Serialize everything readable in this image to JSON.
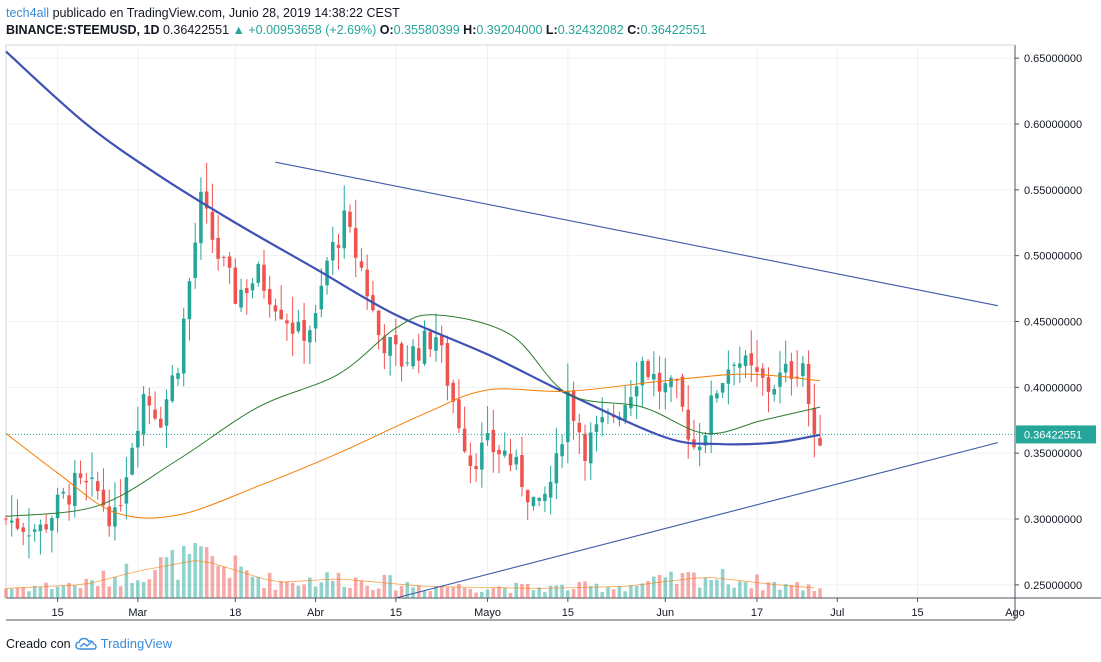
{
  "header": {
    "user": "tech4all",
    "published": "publicado en TradingView.com, Junio 28, 2019 14:38:22 CEST",
    "symbol": "BINANCE:STEEMUSD, 1D",
    "last": "0.36422551",
    "change_arrow": "▲",
    "change": "+0.00953658 (+2.69%)",
    "o_label": "O:",
    "o": "0.35580399",
    "h_label": "H:",
    "h": "0.39204000",
    "l_label": "L:",
    "l": "0.32432082",
    "c_label": "C:",
    "c": "0.36422551"
  },
  "footer": {
    "created": "Creado con",
    "logo_text": "TradingView",
    "logo_icon": "tradingview-cloud-icon"
  },
  "colors": {
    "up": "#26a69a",
    "down": "#ef5350",
    "ma_blue": "#3f51b5",
    "ma_green": "#2e7d32",
    "ma_orange": "#f57c00",
    "trend": "#3d5aa8"
  },
  "chart_data": {
    "type": "candlestick",
    "y_axis": {
      "range": [
        0.24,
        0.66
      ],
      "ticks": [
        "0.65000000",
        "0.60000000",
        "0.55000000",
        "0.50000000",
        "0.45000000",
        "0.40000000",
        "0.35000000",
        "0.30000000",
        "0.25000000"
      ],
      "current_label": "0.36422551"
    },
    "x_axis": {
      "range": [
        "2019-02-06",
        "2019-08-01"
      ],
      "ticks": [
        {
          "date": "2019-02-15",
          "label": "15"
        },
        {
          "date": "2019-03-01",
          "label": "Mar"
        },
        {
          "date": "2019-03-18",
          "label": "18"
        },
        {
          "date": "2019-04-01",
          "label": "Abr"
        },
        {
          "date": "2019-04-15",
          "label": "15"
        },
        {
          "date": "2019-05-01",
          "label": "Mayo"
        },
        {
          "date": "2019-05-15",
          "label": "15"
        },
        {
          "date": "2019-06-01",
          "label": "Jun"
        },
        {
          "date": "2019-06-17",
          "label": "17"
        },
        {
          "date": "2019-07-01",
          "label": "Jul"
        },
        {
          "date": "2019-07-15",
          "label": "15"
        },
        {
          "date": "2019-08-01",
          "label": "Ago"
        }
      ]
    },
    "grid": true,
    "anchors": [
      [
        "2019-02-06",
        0.3
      ],
      [
        "2019-02-12",
        0.292
      ],
      [
        "2019-02-15",
        0.31
      ],
      [
        "2019-02-18",
        0.325
      ],
      [
        "2019-02-22",
        0.32
      ],
      [
        "2019-02-25",
        0.298
      ],
      [
        "2019-02-28",
        0.36
      ],
      [
        "2019-03-02",
        0.395
      ],
      [
        "2019-03-05",
        0.378
      ],
      [
        "2019-03-08",
        0.42
      ],
      [
        "2019-03-12",
        0.54
      ],
      [
        "2019-03-15",
        0.5
      ],
      [
        "2019-03-18",
        0.47
      ],
      [
        "2019-03-22",
        0.485
      ],
      [
        "2019-03-26",
        0.46
      ],
      [
        "2019-03-29",
        0.44
      ],
      [
        "2019-04-01",
        0.45
      ],
      [
        "2019-04-03",
        0.495
      ],
      [
        "2019-04-06",
        0.525
      ],
      [
        "2019-04-09",
        0.49
      ],
      [
        "2019-04-12",
        0.44
      ],
      [
        "2019-04-16",
        0.42
      ],
      [
        "2019-04-19",
        0.43
      ],
      [
        "2019-04-22",
        0.44
      ],
      [
        "2019-04-25",
        0.39
      ],
      [
        "2019-04-28",
        0.345
      ],
      [
        "2019-05-01",
        0.355
      ],
      [
        "2019-05-04",
        0.35
      ],
      [
        "2019-05-07",
        0.33
      ],
      [
        "2019-05-10",
        0.305
      ],
      [
        "2019-05-13",
        0.34
      ],
      [
        "2019-05-15",
        0.395
      ],
      [
        "2019-05-18",
        0.355
      ],
      [
        "2019-05-21",
        0.37
      ],
      [
        "2019-05-25",
        0.39
      ],
      [
        "2019-05-28",
        0.42
      ],
      [
        "2019-05-31",
        0.4
      ],
      [
        "2019-06-03",
        0.395
      ],
      [
        "2019-06-06",
        0.355
      ],
      [
        "2019-06-08",
        0.37
      ],
      [
        "2019-06-10",
        0.4
      ],
      [
        "2019-06-13",
        0.425
      ],
      [
        "2019-06-16",
        0.41
      ],
      [
        "2019-06-19",
        0.4
      ],
      [
        "2019-06-22",
        0.41
      ],
      [
        "2019-06-25",
        0.42
      ],
      [
        "2019-06-27",
        0.355
      ],
      [
        "2019-06-28",
        0.364
      ]
    ],
    "volume_anchors": [
      [
        "2019-02-06",
        0.25
      ],
      [
        "2019-02-20",
        0.35
      ],
      [
        "2019-03-01",
        0.7
      ],
      [
        "2019-03-12",
        1.0
      ],
      [
        "2019-03-25",
        0.4
      ],
      [
        "2019-04-05",
        0.5
      ],
      [
        "2019-04-20",
        0.3
      ],
      [
        "2019-05-10",
        0.25
      ],
      [
        "2019-05-25",
        0.3
      ],
      [
        "2019-06-08",
        0.55
      ],
      [
        "2019-06-20",
        0.35
      ],
      [
        "2019-06-28",
        0.25
      ]
    ],
    "moving_averages": [
      {
        "color": "blue",
        "period": 200,
        "points": [
          [
            "2019-02-06",
            0.655
          ],
          [
            "2019-02-20",
            0.6
          ],
          [
            "2019-03-05",
            0.56
          ],
          [
            "2019-03-18",
            0.525
          ],
          [
            "2019-04-01",
            0.49
          ],
          [
            "2019-04-15",
            0.455
          ],
          [
            "2019-05-01",
            0.425
          ],
          [
            "2019-05-15",
            0.395
          ],
          [
            "2019-06-01",
            0.362
          ],
          [
            "2019-06-10",
            0.357
          ],
          [
            "2019-06-20",
            0.358
          ],
          [
            "2019-06-28",
            0.364
          ]
        ]
      },
      {
        "color": "green",
        "period": 50,
        "points": [
          [
            "2019-02-06",
            0.302
          ],
          [
            "2019-02-22",
            0.31
          ],
          [
            "2019-03-08",
            0.345
          ],
          [
            "2019-03-22",
            0.385
          ],
          [
            "2019-04-05",
            0.41
          ],
          [
            "2019-04-15",
            0.445
          ],
          [
            "2019-04-22",
            0.455
          ],
          [
            "2019-05-05",
            0.44
          ],
          [
            "2019-05-15",
            0.395
          ],
          [
            "2019-05-28",
            0.385
          ],
          [
            "2019-06-08",
            0.365
          ],
          [
            "2019-06-18",
            0.375
          ],
          [
            "2019-06-28",
            0.385
          ]
        ]
      },
      {
        "color": "orange",
        "period": 100,
        "points": [
          [
            "2019-02-06",
            0.365
          ],
          [
            "2019-02-15",
            0.335
          ],
          [
            "2019-02-25",
            0.305
          ],
          [
            "2019-03-08",
            0.303
          ],
          [
            "2019-03-22",
            0.325
          ],
          [
            "2019-04-05",
            0.35
          ],
          [
            "2019-04-20",
            0.38
          ],
          [
            "2019-05-01",
            0.398
          ],
          [
            "2019-05-15",
            0.397
          ],
          [
            "2019-06-01",
            0.405
          ],
          [
            "2019-06-15",
            0.41
          ],
          [
            "2019-06-28",
            0.405
          ]
        ]
      }
    ],
    "trendlines": [
      {
        "points": [
          [
            "2019-03-25",
            0.571
          ],
          [
            "2019-07-29",
            0.462
          ]
        ]
      },
      {
        "points": [
          [
            "2019-04-15",
            0.24
          ],
          [
            "2019-07-29",
            0.358
          ]
        ]
      }
    ]
  }
}
